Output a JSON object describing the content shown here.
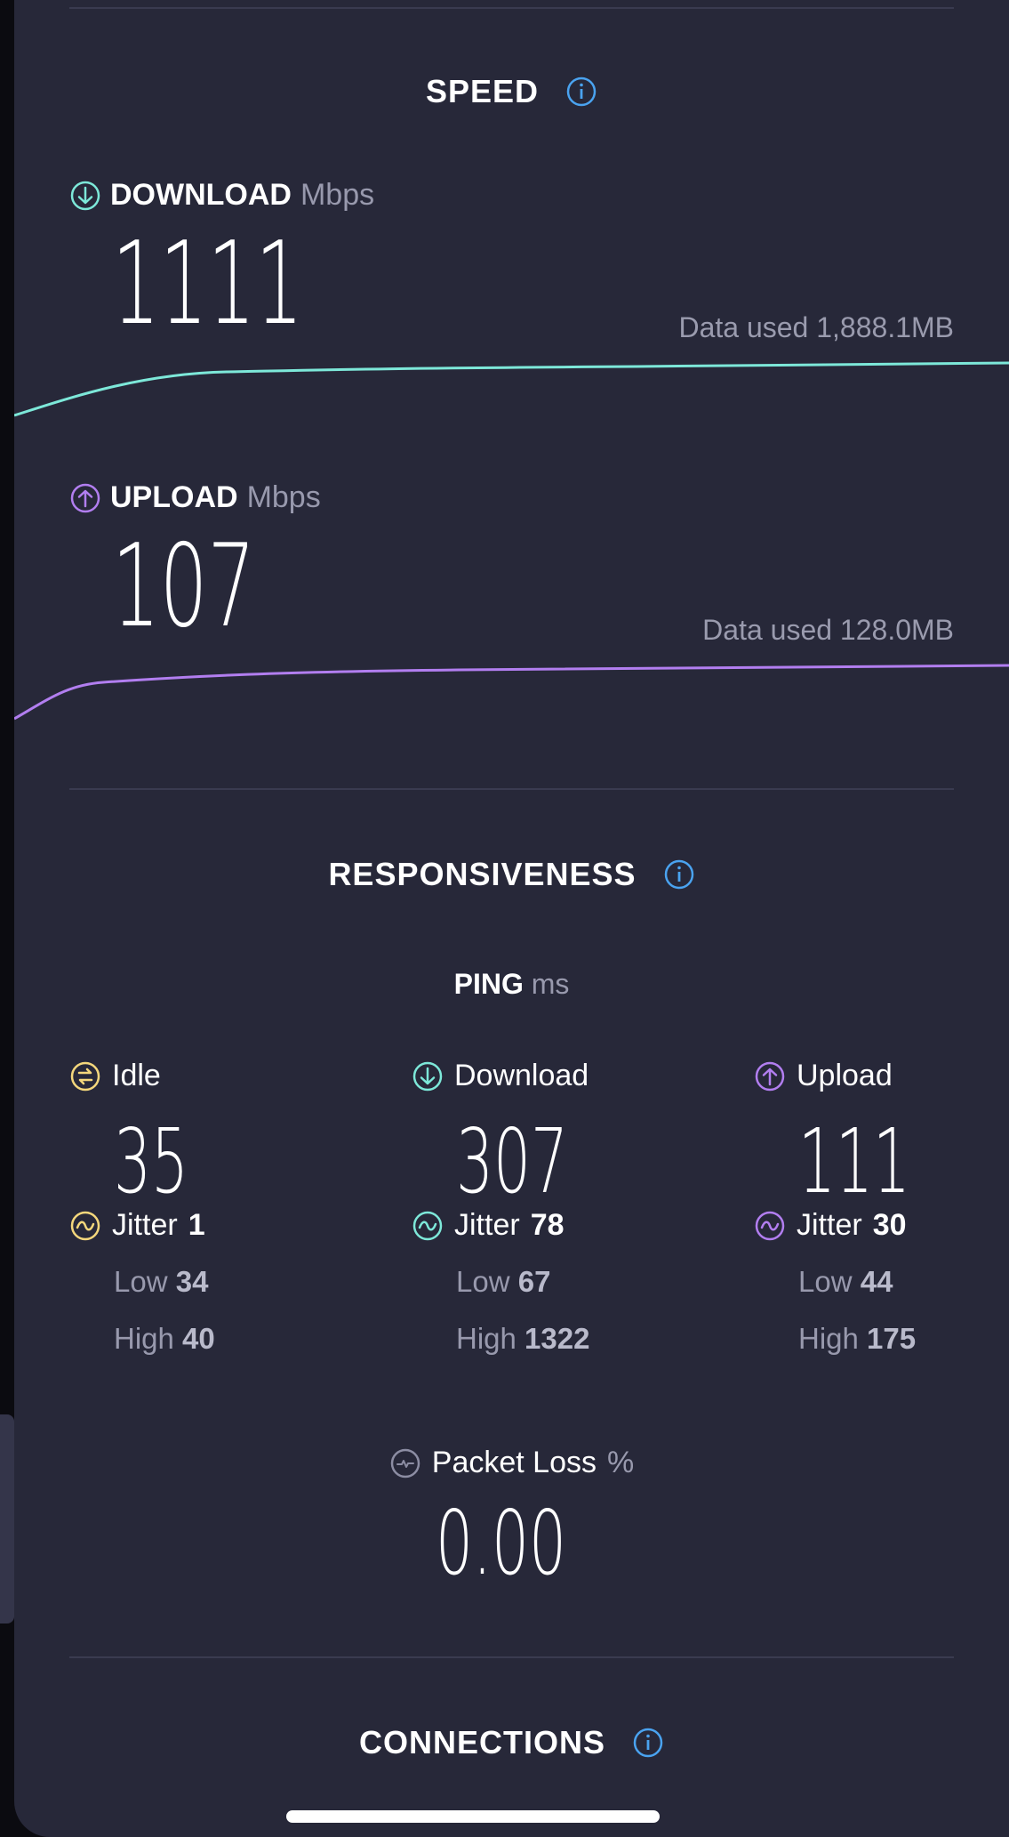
{
  "speed": {
    "title": "SPEED",
    "download": {
      "label": "DOWNLOAD",
      "unit": "Mbps",
      "value": "1111",
      "data_used": "Data used 1,888.1MB",
      "color": "#7de8d9"
    },
    "upload": {
      "label": "UPLOAD",
      "unit": "Mbps",
      "value": "107",
      "data_used": "Data used 128.0MB",
      "color": "#b27ef0"
    }
  },
  "responsiveness": {
    "title": "RESPONSIVENESS",
    "ping_label": "PING",
    "ping_unit": "ms",
    "idle": {
      "label": "Idle",
      "value": "35",
      "jitter_label": "Jitter",
      "jitter": "1",
      "low_label": "Low",
      "low": "34",
      "high_label": "High",
      "high": "40",
      "color": "#f4d77c"
    },
    "download": {
      "label": "Download",
      "value": "307",
      "jitter_label": "Jitter",
      "jitter": "78",
      "low_label": "Low",
      "low": "67",
      "high_label": "High",
      "high": "1322",
      "color": "#7de8d9"
    },
    "upload": {
      "label": "Upload",
      "value": "111",
      "jitter_label": "Jitter",
      "jitter": "30",
      "low_label": "Low",
      "low": "44",
      "high_label": "High",
      "high": "175",
      "color": "#b27ef0"
    },
    "packet_loss": {
      "label": "Packet Loss",
      "unit": "%",
      "value": "0.00"
    }
  },
  "connections": {
    "title": "CONNECTIONS"
  },
  "colors": {
    "background": "#272839",
    "info": "#4aa3f0",
    "muted": "#9899ad"
  }
}
